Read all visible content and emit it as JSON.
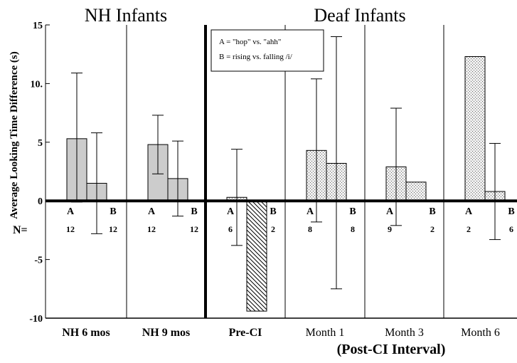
{
  "chart_data": {
    "type": "bar",
    "group_titles": [
      "NH Infants",
      "Deaf Infants"
    ],
    "ylabel": "Average Looking Time Difference (s)",
    "xlabel_sub": "(Post-CI Interval)",
    "ylim": [
      -10,
      15
    ],
    "yticks": [
      {
        "v": 15,
        "label": "15"
      },
      {
        "v": 10,
        "label": "10."
      },
      {
        "v": 5,
        "label": "5"
      },
      {
        "v": 0,
        "label": "0"
      },
      {
        "v": -5,
        "label": "-5"
      },
      {
        "v": -10,
        "label": "-10"
      }
    ],
    "legend": [
      "A = \"hop\" vs. \"ahh\"",
      "B = rising vs. falling /i/"
    ],
    "n_label": "N=",
    "grid": false,
    "panels": [
      {
        "label": "NH 6 mos",
        "bold": true,
        "bars": [
          {
            "cond": "A",
            "n": "12",
            "mean": 5.3,
            "err_low": -0.1,
            "err_high": 10.9,
            "pattern": "gray"
          },
          {
            "cond": "B",
            "n": "12",
            "mean": 1.5,
            "err_low": -2.8,
            "err_high": 5.8,
            "pattern": "gray"
          }
        ]
      },
      {
        "label": "NH 9 mos",
        "bold": true,
        "bars": [
          {
            "cond": "A",
            "n": "12",
            "mean": 4.8,
            "err_low": 2.3,
            "err_high": 7.3,
            "pattern": "gray"
          },
          {
            "cond": "B",
            "n": "12",
            "mean": 1.9,
            "err_low": -1.3,
            "err_high": 5.1,
            "pattern": "gray"
          }
        ]
      },
      {
        "label": "Pre-CI",
        "bold": true,
        "bars": [
          {
            "cond": "A",
            "n": "6",
            "mean": 0.3,
            "err_low": -3.8,
            "err_high": 4.4,
            "pattern": "dots"
          },
          {
            "cond": "B",
            "n": "2",
            "mean": -9.4,
            "err_low": null,
            "err_high": null,
            "pattern": "hatch"
          }
        ]
      },
      {
        "label": "Month 1",
        "bold": false,
        "bars": [
          {
            "cond": "A",
            "n": "8",
            "mean": 4.3,
            "err_low": -1.8,
            "err_high": 10.4,
            "pattern": "dots"
          },
          {
            "cond": "B",
            "n": "8",
            "mean": 3.2,
            "err_low": -7.5,
            "err_high": 14.0,
            "pattern": "dots"
          }
        ]
      },
      {
        "label": "Month 3",
        "bold": false,
        "bars": [
          {
            "cond": "A",
            "n": "9",
            "mean": 2.9,
            "err_low": -2.1,
            "err_high": 7.9,
            "pattern": "dots"
          },
          {
            "cond": "B",
            "n": "2",
            "mean": 1.6,
            "err_low": null,
            "err_high": null,
            "pattern": "dots"
          }
        ]
      },
      {
        "label": "Month 6",
        "bold": false,
        "bars": [
          {
            "cond": "A",
            "n": "2",
            "mean": 12.3,
            "err_low": null,
            "err_high": null,
            "pattern": "dots"
          },
          {
            "cond": "B",
            "n": "6",
            "mean": 0.8,
            "err_low": -3.3,
            "err_high": 4.9,
            "pattern": "dots"
          }
        ]
      }
    ]
  }
}
